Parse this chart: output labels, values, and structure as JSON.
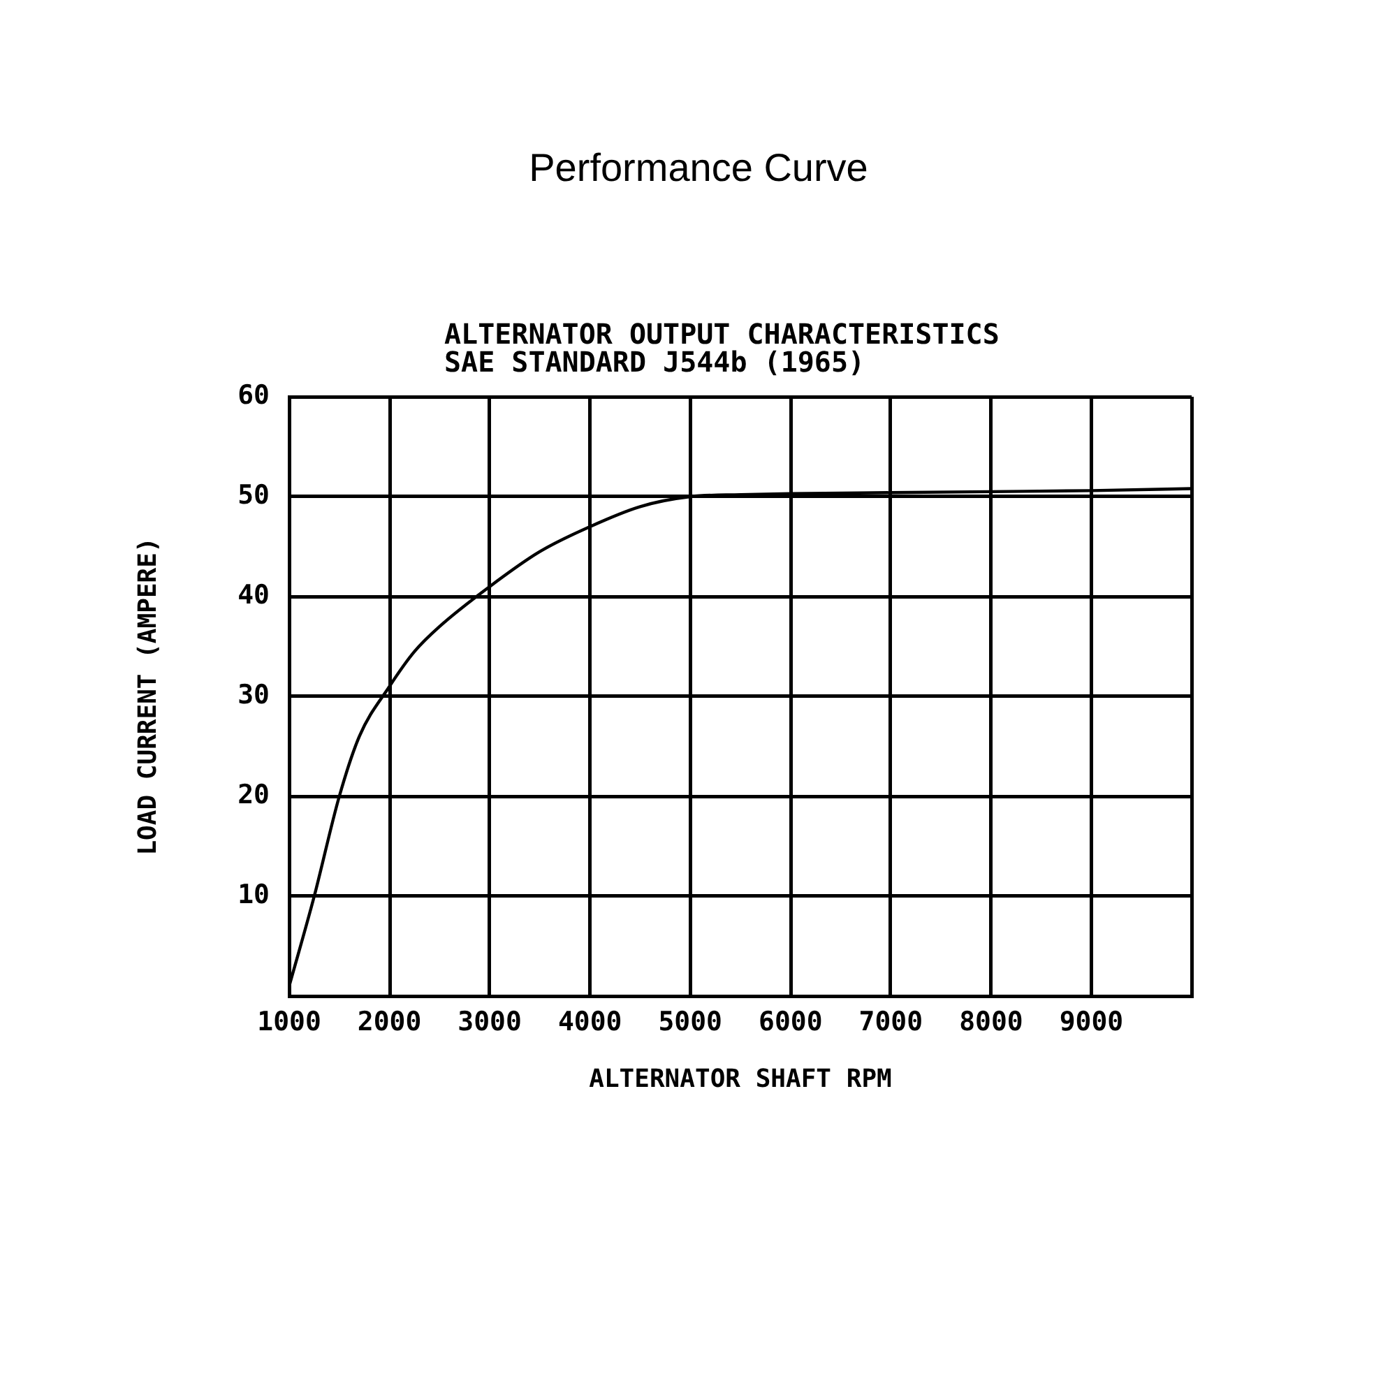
{
  "chart_data": {
    "type": "line",
    "title": "Performance Curve",
    "subtitle": "ALTERNATOR OUTPUT CHARACTERISTICS",
    "annotations": [
      "SAE STANDARD J544b (1965)"
    ],
    "xlabel": "ALTERNATOR SHAFT RPM",
    "ylabel": "LOAD CURRENT (AMPERE)",
    "x": [
      1000,
      1250,
      1500,
      1700,
      2000,
      2250,
      2500,
      3000,
      3500,
      4000,
      4500,
      5000,
      5500,
      6000,
      7000,
      8000,
      9000,
      10000
    ],
    "series": [
      {
        "color": "#000000",
        "values": [
          1,
          10,
          20,
          26,
          31,
          34.5,
          37,
          41,
          44.5,
          47,
          49,
          50,
          50.2,
          50.3,
          50.4,
          50.5,
          50.6,
          50.8
        ]
      }
    ],
    "xlim": [
      1000,
      10000
    ],
    "xticks": [
      1000,
      2000,
      3000,
      4000,
      5000,
      6000,
      7000,
      8000,
      9000,
      {
        "value": 10000,
        "label": null
      }
    ],
    "ylim": [
      0,
      60
    ],
    "yticks": [
      {
        "value": 0,
        "label": null
      },
      10,
      20,
      30,
      40,
      50,
      60
    ],
    "grid": true,
    "legend": false
  }
}
